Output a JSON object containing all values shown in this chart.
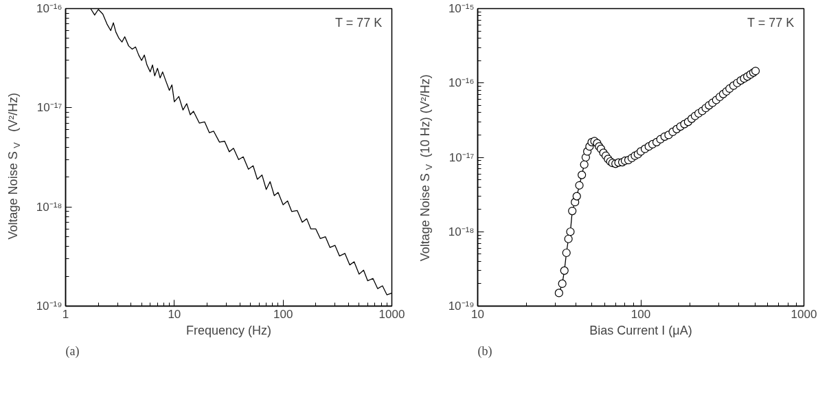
{
  "chart_data": [
    {
      "type": "line",
      "xlabel": "Frequency (Hz)",
      "ylabel": "Voltage Noise S$_{V}$  (V²/Hz)",
      "annotations": [
        "T = 77 K",
        "(a)"
      ],
      "log": "xy",
      "grid": false,
      "line_style": "solid",
      "xlim": [
        1,
        1000
      ],
      "ylim": [
        1e-19,
        1e-16
      ],
      "xticks": [
        1,
        10,
        100,
        1000
      ],
      "yticks": [
        {
          "value": 1e-19,
          "label": "10⁻¹⁹"
        },
        {
          "value": 1e-18,
          "label": "10⁻¹⁸"
        },
        {
          "value": 1e-17,
          "label": "10⁻¹⁷"
        },
        {
          "value": 1e-16,
          "label": "10⁻¹⁶"
        }
      ],
      "series": [
        {
          "color": "#000000",
          "x": [
            1.7,
            1.85,
            2.0,
            2.2,
            2.4,
            2.6,
            2.75,
            2.9,
            3.1,
            3.3,
            3.5,
            3.8,
            4.1,
            4.4,
            4.7,
            5.0,
            5.3,
            5.6,
            6.0,
            6.3,
            6.6,
            7.0,
            7.4,
            7.8,
            8.3,
            9.0,
            9.5,
            10,
            11,
            12,
            13,
            14,
            15,
            17,
            19,
            21,
            23,
            26,
            29,
            32,
            35,
            39,
            43,
            48,
            53,
            58,
            64,
            70,
            76,
            83,
            90,
            100,
            110,
            120,
            135,
            150,
            165,
            180,
            200,
            220,
            245,
            270,
            300,
            330,
            370,
            410,
            450,
            500,
            550,
            600,
            670,
            740,
            820,
            900,
            1000
          ],
          "values": [
            1e-16,
            8.6e-17,
            9.8e-17,
            8.8e-17,
            7e-17,
            6e-17,
            7.2e-17,
            5.8e-17,
            5e-17,
            4.6e-17,
            5.2e-17,
            4.2e-17,
            3.9e-17,
            4.1e-17,
            3.4e-17,
            3e-17,
            3.4e-17,
            2.7e-17,
            2.3e-17,
            2.7e-17,
            2.1e-17,
            2.5e-17,
            2e-17,
            2.3e-17,
            1.9e-17,
            1.5e-17,
            1.7e-17,
            1.15e-17,
            1.3e-17,
            9.5e-18,
            1.1e-17,
            8.5e-18,
            9.2e-18,
            7e-18,
            7.2e-18,
            5.6e-18,
            5.8e-18,
            4.5e-18,
            4.6e-18,
            3.6e-18,
            3.9e-18,
            3e-18,
            3.2e-18,
            2.4e-18,
            2.6e-18,
            1.9e-18,
            2.1e-18,
            1.5e-18,
            1.8e-18,
            1.3e-18,
            1.4e-18,
            1.05e-18,
            1.15e-18,
            9e-19,
            9.2e-19,
            7e-19,
            7.6e-19,
            6e-19,
            6e-19,
            4.8e-19,
            5e-19,
            3.9e-19,
            4.1e-19,
            3.2e-19,
            3.4e-19,
            2.6e-19,
            2.8e-19,
            2.1e-19,
            2.3e-19,
            1.8e-19,
            1.9e-19,
            1.5e-19,
            1.6e-19,
            1.3e-19,
            1.35e-19
          ]
        }
      ]
    },
    {
      "type": "line",
      "xlabel": "Bias Current I (μA)",
      "ylabel": "Voltage Noise S$_{V}$ (10 Hz)  (V²/Hz)",
      "annotations": [
        "T = 77 K",
        "(b)"
      ],
      "log": "xy",
      "grid": false,
      "marker": "circle",
      "line_style": "solid",
      "xlim": [
        10,
        1000
      ],
      "ylim": [
        1e-19,
        1e-15
      ],
      "xticks": [
        10,
        100,
        1000
      ],
      "yticks": [
        {
          "value": 1e-19,
          "label": "10⁻¹⁹"
        },
        {
          "value": 1e-18,
          "label": "10⁻¹⁸"
        },
        {
          "value": 1e-17,
          "label": "10⁻¹⁷"
        },
        {
          "value": 1e-16,
          "label": "10⁻¹⁶"
        },
        {
          "value": 1e-15,
          "label": "10⁻¹⁵"
        }
      ],
      "series": [
        {
          "color": "#000000",
          "x": [
            31.5,
            33,
            34,
            35,
            36,
            37,
            38,
            39.5,
            40.5,
            42,
            43.5,
            45,
            46,
            47,
            48.5,
            50,
            52,
            54,
            55.5,
            57,
            59,
            61,
            63,
            65,
            67,
            70,
            73,
            77,
            80,
            84,
            88,
            92,
            96,
            100,
            106,
            112,
            118,
            125,
            132,
            140,
            148,
            157,
            166,
            175,
            185,
            195,
            205,
            215,
            226,
            238,
            250,
            262,
            275,
            290,
            305,
            320,
            335,
            350,
            370,
            390,
            410,
            430,
            450,
            470,
            490,
            505
          ],
          "values": [
            1.5e-19,
            2e-19,
            3e-19,
            5.2e-19,
            8e-19,
            1e-18,
            1.9e-18,
            2.5e-18,
            3e-18,
            4.2e-18,
            5.8e-18,
            8e-18,
            1e-17,
            1.2e-17,
            1.4e-17,
            1.6e-17,
            1.65e-17,
            1.55e-17,
            1.4e-17,
            1.3e-17,
            1.15e-17,
            1.05e-17,
            9.5e-18,
            8.8e-18,
            8.4e-18,
            8.2e-18,
            8.5e-18,
            8.6e-18,
            9e-18,
            9.2e-18,
            9.8e-18,
            1.05e-17,
            1.1e-17,
            1.2e-17,
            1.3e-17,
            1.4e-17,
            1.5e-17,
            1.6e-17,
            1.75e-17,
            1.9e-17,
            2e-17,
            2.2e-17,
            2.4e-17,
            2.6e-17,
            2.8e-17,
            3e-17,
            3.3e-17,
            3.6e-17,
            3.9e-17,
            4.2e-17,
            4.6e-17,
            5e-17,
            5.4e-17,
            5.9e-17,
            6.5e-17,
            7.1e-17,
            7.7e-17,
            8.4e-17,
            9.2e-17,
            1e-16,
            1.08e-16,
            1.15e-16,
            1.22e-16,
            1.3e-16,
            1.38e-16,
            1.45e-16
          ]
        }
      ]
    }
  ]
}
